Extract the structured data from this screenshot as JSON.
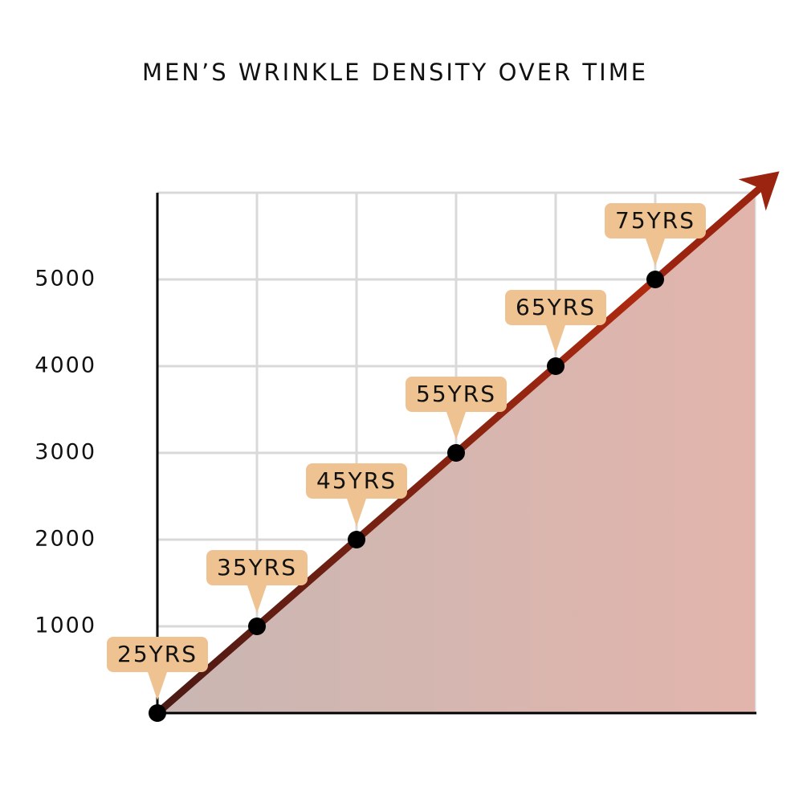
{
  "chart_data": {
    "type": "line",
    "title": "MEN’S WRINKLE DENSITY OVER TIME",
    "categories": [
      "25YRS",
      "35YRS",
      "45YRS",
      "55YRS",
      "65YRS",
      "75YRS"
    ],
    "values": [
      0,
      1000,
      2000,
      3000,
      4000,
      5000
    ],
    "color": "#9a2410",
    "point_color": "#000000",
    "label_color": "#efc292",
    "ylim": [
      0,
      6000
    ],
    "yticks": [
      1000,
      2000,
      3000,
      4000,
      5000
    ],
    "grid": true
  }
}
